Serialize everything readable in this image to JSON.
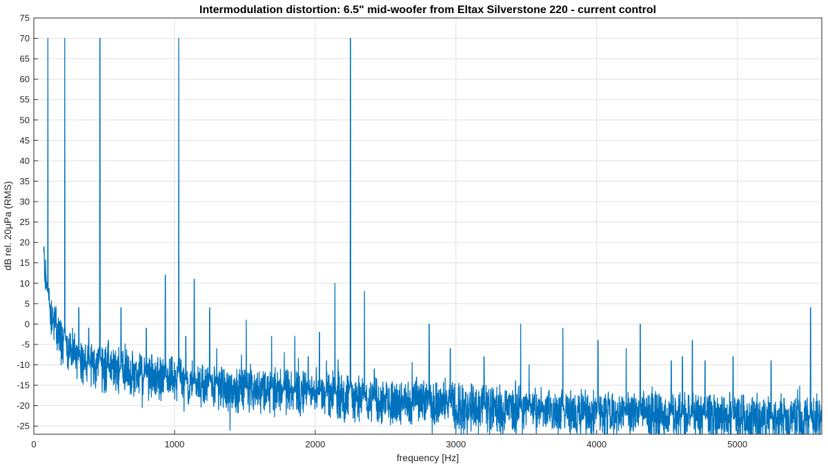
{
  "chart_data": {
    "type": "line",
    "title": "Intermodulation distortion: 6.5\" mid-woofer from Eltax Silverstone 220 - current control",
    "xlabel": "frequency [Hz]",
    "ylabel": "dB rel. 20μPa (RMS)",
    "xlim": [
      0,
      5600
    ],
    "ylim": [
      -27,
      75
    ],
    "xticks": [
      0,
      1000,
      2000,
      3000,
      4000,
      5000
    ],
    "yticks": [
      -25,
      -20,
      -15,
      -10,
      -5,
      0,
      5,
      10,
      15,
      20,
      25,
      30,
      35,
      40,
      45,
      50,
      55,
      60,
      65,
      70,
      75
    ],
    "grid": true,
    "line_color": "#0072BD",
    "noise_floor": {
      "x": [
        70,
        100,
        150,
        200,
        300,
        400,
        500,
        700,
        1000,
        1500,
        2000,
        2500,
        3000,
        3500,
        4000,
        4500,
        5000,
        5600
      ],
      "y": [
        17,
        5,
        0,
        -4,
        -8,
        -10,
        -11,
        -12,
        -14,
        -16,
        -17,
        -19,
        -20,
        -21,
        -22,
        -22.5,
        -23,
        -23.5
      ]
    },
    "peaks": {
      "x": [
        100,
        220,
        470,
        935,
        1030,
        1140,
        1250,
        1510,
        1690,
        1855,
        2030,
        2140,
        2250,
        2350,
        2810,
        3460,
        3760,
        4310,
        4680,
        5520
      ],
      "y": [
        70,
        70,
        70,
        12,
        70,
        11,
        4,
        1,
        -3,
        -3,
        -2,
        10,
        70,
        8,
        0,
        0,
        -1,
        0,
        -4,
        4
      ]
    },
    "small_peaks": {
      "x": [
        320,
        390,
        530,
        620,
        800,
        1080,
        1300,
        1780,
        1950,
        2080,
        2420,
        2720,
        2960,
        3200,
        3520,
        4010,
        4210,
        4530,
        4610,
        4770,
        4970,
        5240
      ],
      "y": [
        4,
        -1,
        -4,
        4,
        -1,
        -3,
        -6,
        -7,
        -8,
        -9,
        -11,
        -13,
        -6,
        -8,
        -10,
        -4,
        -6,
        -9,
        -8,
        -9,
        -8,
        -9
      ]
    }
  }
}
